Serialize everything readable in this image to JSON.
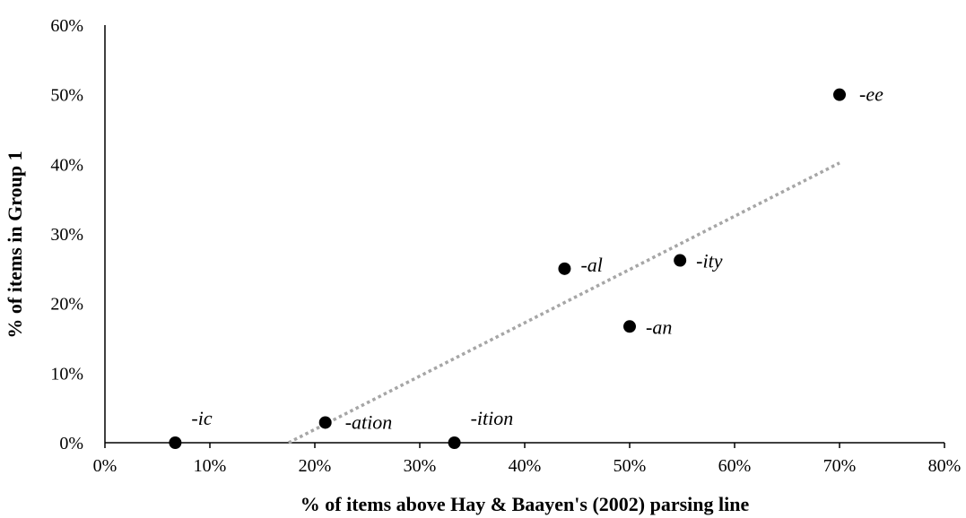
{
  "chart_data": {
    "type": "scatter",
    "xlabel": "% of items above Hay & Baayen's (2002) parsing line",
    "ylabel": "% of items in Group 1",
    "xlim": [
      0,
      80
    ],
    "ylim": [
      0,
      60
    ],
    "x_ticks": [
      "0%",
      "10%",
      "20%",
      "30%",
      "40%",
      "50%",
      "60%",
      "70%",
      "80%"
    ],
    "y_ticks": [
      "0%",
      "10%",
      "20%",
      "30%",
      "40%",
      "50%",
      "60%"
    ],
    "grid": false,
    "legend": "none",
    "points": [
      {
        "label": "-ic",
        "x": 6.7,
        "y": 0
      },
      {
        "label": "-ation",
        "x": 21,
        "y": 2.9
      },
      {
        "label": "-ition",
        "x": 33.3,
        "y": 0
      },
      {
        "label": "-al",
        "x": 43.8,
        "y": 25
      },
      {
        "label": "-an",
        "x": 50,
        "y": 16.7
      },
      {
        "label": "-ity",
        "x": 54.8,
        "y": 26.2
      },
      {
        "label": "-ee",
        "x": 70,
        "y": 50
      }
    ],
    "trendline": {
      "style": "dotted",
      "x": [
        17.5,
        70
      ],
      "y": [
        0,
        40.2
      ]
    },
    "colors": {
      "points": "#000000",
      "trendline": "#a6a6a6",
      "axes": "#000000"
    }
  }
}
